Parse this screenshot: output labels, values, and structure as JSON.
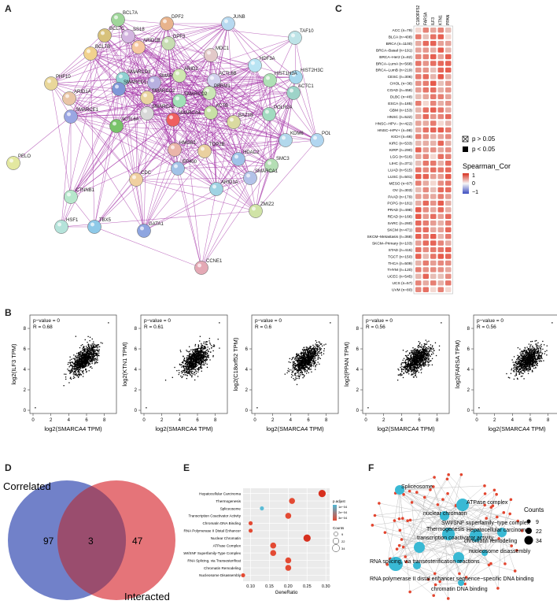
{
  "panels": {
    "A": "A",
    "B": "B",
    "C": "C",
    "D": "D",
    "E": "E",
    "F": "F"
  },
  "network": {
    "nodes": [
      "BCL7A",
      "DPF2",
      "JUNB",
      "BCL7C",
      "BCL7B",
      "SS18",
      "ARID1B",
      "DPF3",
      "MDC1",
      "TAF10",
      "PHF10",
      "SMARCD3",
      "SMARCB1",
      "ARID2",
      "ACTL6B",
      "HDF3A",
      "HIST2H3C",
      "HIST1H3A",
      "ACTC1",
      "ARID1A",
      "SMARCD1",
      "PBRM1",
      "SMARCE1",
      "SMARCC2",
      "SMARCD2",
      "SMARCA4",
      "ACTB",
      "POLR2A",
      "SMARCA2",
      "ACTL6A",
      "BAZ1B",
      "PELO",
      "KDM6",
      "POLR3I",
      "TOP2B",
      "HMGB1",
      "HDAC2",
      "SMC3",
      "CTNNB1",
      "EP400",
      "ARID1A",
      "SMARCA1",
      "HSF1",
      "TBX5",
      "GATA1",
      "ZMIZ2",
      "CCNE1",
      "CDC"
    ]
  },
  "heatmap": {
    "columns": [
      "C18ORF52",
      "FARSA",
      "ILF3",
      "KTN1",
      "PPAN"
    ],
    "rows": [
      "ACC (n=79)",
      "BLCA (n=408)",
      "BRCA (n=1100)",
      "BRCA–Basal (n=191)",
      "BRCA–Her2 (n=82)",
      "BRCA–LumA (n=568)",
      "BRCA–LumB (n=219)",
      "CESC (n=306)",
      "CHOL (n=36)",
      "COAD (n=458)",
      "DLBC (n=48)",
      "ESCA (n=185)",
      "GBM (n=153)",
      "HNSC (n=522)",
      "HNSC–HPV– (n=422)",
      "HNSC–HPV+ (n=98)",
      "KICH (n=66)",
      "KIRC (n=533)",
      "KIRP (n=290)",
      "LGG (n=516)",
      "LIHC (n=371)",
      "LUAD (n=515)",
      "LUSC (n=501)",
      "MESO (n=87)",
      "OV (n=303)",
      "PAAD (n=179)",
      "PCPG (n=181)",
      "PRAD (n=498)",
      "READ (n=166)",
      "SARC (n=260)",
      "SKCM (n=471)",
      "SKCM–Metastasis (n=368)",
      "SKCM–Primary (n=103)",
      "STAD (n=415)",
      "TGCT (n=150)",
      "THCA (n=509)",
      "THYM (n=120)",
      "UCEC (n=545)",
      "UCS (n=57)",
      "UVM (n=80)"
    ],
    "legend_p_gt": "p > 0.05",
    "legend_p_lt": "p < 0.05",
    "legend_title": "Spearman_Cor",
    "legend_ticks": [
      "1",
      "0",
      "−1"
    ],
    "colors": {
      "high": "#d7301f",
      "mid": "#f7f7f7",
      "low": "#3b4cc0"
    }
  },
  "chart_data": [
    {
      "type": "scatter",
      "xlabel": "log2(SMARCA4 TPM)",
      "ylabel": "log2(ILF3 TPM)",
      "p_text": "p−value = 0",
      "r_text": "R = 0.68",
      "r": 0.68,
      "x_ticks": [
        "0",
        "2",
        "4",
        "6",
        "8"
      ],
      "y_ticks": [
        "0",
        "2",
        "4",
        "6",
        "8"
      ]
    },
    {
      "type": "scatter",
      "xlabel": "log2(SMARCA4 TPM)",
      "ylabel": "log2(KTN1 TPM)",
      "p_text": "p−value = 0",
      "r_text": "R = 0.61",
      "r": 0.61,
      "x_ticks": [
        "0",
        "2",
        "4",
        "6",
        "8"
      ],
      "y_ticks": [
        "0",
        "2",
        "4",
        "6",
        "8"
      ]
    },
    {
      "type": "scatter",
      "xlabel": "log2(SMARCA4 TPM)",
      "ylabel": "log2(C18orf52 TPM)",
      "p_text": "p−value = 0",
      "r_text": "R = 0.6",
      "r": 0.6,
      "x_ticks": [
        "0",
        "2",
        "4",
        "6",
        "8"
      ],
      "y_ticks": [
        "0",
        "2",
        "4",
        "6"
      ]
    },
    {
      "type": "scatter",
      "xlabel": "log2(SMARCA4 TPM)",
      "ylabel": "log2(PPAN TPM)",
      "p_text": "p−value = 0",
      "r_text": "R = 0.56",
      "r": 0.56,
      "x_ticks": [
        "0",
        "2",
        "4",
        "6",
        "8"
      ],
      "y_ticks": [
        "0",
        "2",
        "4",
        "6",
        "8"
      ]
    },
    {
      "type": "scatter",
      "xlabel": "log2(SMARCA4 TPM)",
      "ylabel": "log2(FARSA TPM)",
      "p_text": "p−value = 0",
      "r_text": "R = 0.56",
      "r": 0.56,
      "x_ticks": [
        "0",
        "2",
        "4",
        "6",
        "8"
      ],
      "y_ticks": [
        "0",
        "2",
        "4",
        "6",
        "8"
      ]
    },
    {
      "type": "venn",
      "sets": [
        {
          "name": "Correlated",
          "only": 97,
          "color": "#6f7ec7"
        },
        {
          "name": "Interacted",
          "only": 47,
          "color": "#e46a6f"
        }
      ],
      "intersection": 3
    },
    {
      "type": "scatter",
      "subtype": "dotplot",
      "xlabel": "GeneRatio",
      "x_ticks": [
        "0.10",
        "0.15",
        "0.20",
        "0.25",
        "0.30"
      ],
      "xlim": [
        0.08,
        0.31
      ],
      "terms": [
        {
          "label": "Hepatocellular Carcinoma",
          "x": 0.29,
          "count": 34,
          "color": "#d7301f"
        },
        {
          "label": "Thermogenesis",
          "x": 0.21,
          "count": 22,
          "color": "#e34a33"
        },
        {
          "label": "Spliceosome",
          "x": 0.13,
          "count": 9,
          "color": "#5bbcd6"
        },
        {
          "label": "Transcription Coactivator Activity",
          "x": 0.2,
          "count": 22,
          "color": "#e34a33"
        },
        {
          "label": "Chromatin DNA Binding",
          "x": 0.1,
          "count": 9,
          "color": "#e34a33"
        },
        {
          "label": "RNA Polymerase II Distal Enhancer Sequence-Specific DNA Binding",
          "x": 0.1,
          "count": 9,
          "color": "#e34a33"
        },
        {
          "label": "Nuclear Chromatin",
          "x": 0.25,
          "count": 34,
          "color": "#d7301f"
        },
        {
          "label": "ATPase Complex",
          "x": 0.16,
          "count": 22,
          "color": "#e34a33"
        },
        {
          "label": "SWI/SNF Superfamily-Type Complex",
          "x": 0.16,
          "count": 22,
          "color": "#e34a33"
        },
        {
          "label": "RNA Splicing, via Transesterification Reactions",
          "x": 0.2,
          "count": 22,
          "color": "#e34a33"
        },
        {
          "label": "Chromatin Remodeling",
          "x": 0.2,
          "count": 22,
          "color": "#e34a33"
        },
        {
          "label": "Nucleosome Disassembly",
          "x": 0.08,
          "count": 9,
          "color": "#e34a33"
        }
      ],
      "legend_padj": "p.adjust",
      "legend_padj_ticks": [
        "1e−04",
        "2e−04",
        "3e−04"
      ],
      "legend_count": "Counts",
      "legend_count_ticks": [
        "9",
        "22",
        "34"
      ]
    }
  ],
  "enrichment_network": {
    "terms": [
      "Spliceosome",
      "ATPase complex",
      "nuclear chromatin",
      "SWI/SNF superfamily−type complex",
      "Thermogenesis",
      "Hepatocellular carcinoma",
      "transcription coactivator activity",
      "chromatin remodeling",
      "nucleosome disassembly",
      "RNA splicing, via transesterification reactions",
      "RNA polymerase II distal enhancer sequence−specific DNA binding",
      "chromatin DNA binding"
    ],
    "legend_title": "Counts",
    "legend_ticks": [
      "9",
      "22",
      "34"
    ]
  }
}
